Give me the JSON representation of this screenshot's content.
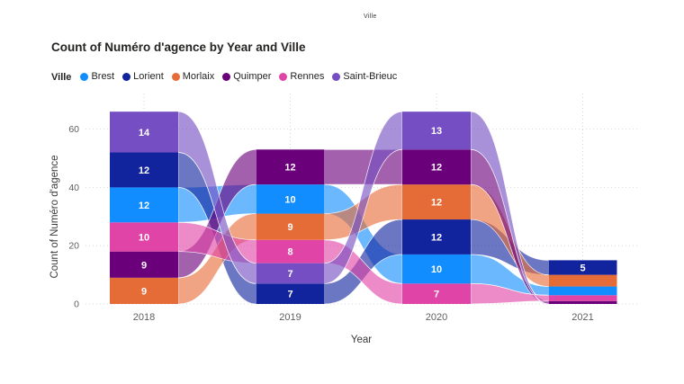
{
  "page": {
    "mini_header_text": "Ville"
  },
  "chart": {
    "title": "Count of Numéro d'agence by Year and Ville",
    "legend_label": "Ville"
  },
  "chart_data": {
    "type": "bar",
    "variant": "power-bi-ribbon (stacked columns connected by semi-transparent flow ribbons)",
    "title": "Count of Numéro d'agence by Year and Ville",
    "xlabel": "Year",
    "ylabel": "Count of Numéro d'agence",
    "categories": [
      "2018",
      "2019",
      "2020",
      "2021"
    ],
    "y_ticks": [
      0,
      20,
      40,
      60
    ],
    "ylim": [
      0,
      66
    ],
    "grid": "dotted horizontal lines at y ticks and dotted vertical lines at category centers",
    "legend_position": "top-left under title",
    "series": [
      {
        "name": "Brest",
        "color": "#118DFF",
        "values": [
          12,
          10,
          10,
          3
        ]
      },
      {
        "name": "Lorient",
        "color": "#12239E",
        "values": [
          12,
          7,
          12,
          5
        ]
      },
      {
        "name": "Morlaix",
        "color": "#E66C37",
        "values": [
          9,
          9,
          12,
          4
        ]
      },
      {
        "name": "Quimper",
        "color": "#6B007B",
        "values": [
          9,
          12,
          12,
          1
        ]
      },
      {
        "name": "Rennes",
        "color": "#E044A7",
        "values": [
          10,
          8,
          7,
          2
        ]
      },
      {
        "name": "Saint-Brieuc",
        "color": "#744EC2",
        "values": [
          14,
          7,
          13,
          0
        ]
      }
    ],
    "stack_order_top_to_bottom": {
      "2018": [
        "Saint-Brieuc",
        "Lorient",
        "Brest",
        "Rennes",
        "Quimper",
        "Morlaix"
      ],
      "2019": [
        "Quimper",
        "Brest",
        "Morlaix",
        "Rennes",
        "Saint-Brieuc",
        "Lorient"
      ],
      "2020": [
        "Saint-Brieuc",
        "Quimper",
        "Morlaix",
        "Lorient",
        "Brest",
        "Rennes"
      ],
      "2021": [
        "Lorient",
        "Morlaix",
        "Brest",
        "Rennes",
        "Quimper"
      ]
    },
    "data_labels": {
      "color": "#FFFFFF",
      "min_value_shown": 5,
      "visible_labels": {
        "2018": [
          14,
          12,
          12,
          10,
          9,
          9
        ],
        "2019": [
          12,
          10,
          9,
          8,
          7,
          7
        ],
        "2020": [
          13,
          12,
          12,
          12,
          10,
          7
        ],
        "2021": [
          5
        ]
      }
    },
    "style_colors": {
      "axis_tick_text": "#605E5C",
      "axis_title_text": "#3B3A39",
      "gridline": "#D6D6D6",
      "title_text": "#252423"
    }
  }
}
